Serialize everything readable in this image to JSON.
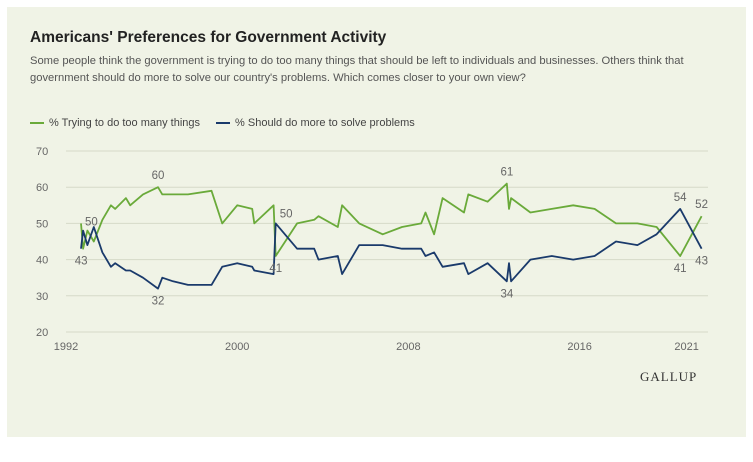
{
  "brand": "GALLUP",
  "colors": {
    "series_1": "#6aaa3a",
    "series_2": "#1a3a6b",
    "background": "#f0f3e6",
    "grid": "#d6dac8"
  },
  "chart_data": {
    "type": "line",
    "title": "Americans' Preferences for Government Activity",
    "subtitle": "Some people think the government is trying to do too many things that should be left to individuals and businesses. Others think that government should do more to solve our country's problems. Which comes closer to your own view?",
    "xlabel": "",
    "ylabel": "",
    "xlim": [
      1992,
      2022
    ],
    "ylim": [
      20,
      70
    ],
    "y_ticks": [
      20,
      30,
      40,
      50,
      60,
      70
    ],
    "x_ticks": [
      "1992",
      "2000",
      "2008",
      "2016",
      "2021"
    ],
    "x_tick_values": [
      1992,
      2000,
      2008,
      2016,
      2021
    ],
    "grid": true,
    "legend_position": "top-left",
    "series": [
      {
        "name": "% Trying to do too many things",
        "x": [
          1992.7,
          1992.8,
          1993.0,
          1993.3,
          1993.7,
          1994.1,
          1994.3,
          1994.8,
          1995.0,
          1995.6,
          1996.3,
          1996.5,
          1997.0,
          1997.7,
          1998.8,
          1999.3,
          2000.0,
          2000.7,
          2000.8,
          2001.7,
          2001.8,
          2002.8,
          2003.6,
          2003.8,
          2004.7,
          2004.9,
          2005.7,
          2006.8,
          2007.7,
          2008.6,
          2008.8,
          2009.2,
          2009.6,
          2010.6,
          2010.8,
          2011.7,
          2012.6,
          2012.7,
          2012.8,
          2013.7,
          2014.7,
          2015.7,
          2016.7,
          2017.7,
          2018.7,
          2019.6,
          2020.7,
          2021.7
        ],
        "values": [
          50,
          43,
          48,
          45,
          51,
          55,
          54,
          57,
          55,
          58,
          60,
          58,
          58,
          58,
          59,
          50,
          55,
          54,
          50,
          55,
          41,
          50,
          51,
          52,
          49,
          55,
          50,
          47,
          49,
          50,
          53,
          47,
          57,
          53,
          58,
          56,
          61,
          54,
          57,
          53,
          54,
          55,
          54,
          50,
          50,
          49,
          41,
          52
        ]
      },
      {
        "name": "% Should do more to solve problems",
        "x": [
          1992.7,
          1992.8,
          1993.0,
          1993.3,
          1993.7,
          1994.1,
          1994.3,
          1994.8,
          1995.0,
          1995.6,
          1996.3,
          1996.5,
          1997.0,
          1997.7,
          1998.8,
          1999.3,
          2000.0,
          2000.7,
          2000.8,
          2001.7,
          2001.8,
          2002.8,
          2003.6,
          2003.8,
          2004.7,
          2004.9,
          2005.7,
          2006.8,
          2007.7,
          2008.6,
          2008.8,
          2009.2,
          2009.6,
          2010.6,
          2010.8,
          2011.7,
          2012.6,
          2012.7,
          2012.8,
          2013.7,
          2014.7,
          2015.7,
          2016.7,
          2017.7,
          2018.7,
          2019.6,
          2020.7,
          2021.7
        ],
        "values": [
          43,
          48,
          44,
          49,
          42,
          38,
          39,
          37,
          37,
          35,
          32,
          35,
          34,
          33,
          33,
          38,
          39,
          38,
          37,
          36,
          50,
          43,
          43,
          40,
          41,
          36,
          44,
          44,
          43,
          43,
          41,
          42,
          38,
          39,
          36,
          39,
          34,
          39,
          34,
          40,
          41,
          40,
          41,
          45,
          44,
          47,
          54,
          43
        ]
      }
    ],
    "annotations": [
      {
        "series": 0,
        "x": 1992.7,
        "value": 50,
        "label": "50",
        "pos": "right"
      },
      {
        "series": 1,
        "x": 1992.8,
        "value": 43,
        "label": "43",
        "pos": "below-left"
      },
      {
        "series": 0,
        "x": 1996.3,
        "value": 60,
        "label": "60",
        "pos": "above"
      },
      {
        "series": 1,
        "x": 1996.3,
        "value": 32,
        "label": "32",
        "pos": "below"
      },
      {
        "series": 0,
        "x": 2001.8,
        "value": 41,
        "label": "41",
        "pos": "below"
      },
      {
        "series": 1,
        "x": 2001.8,
        "value": 50,
        "label": "50",
        "pos": "above-right"
      },
      {
        "series": 0,
        "x": 2012.6,
        "value": 61,
        "label": "61",
        "pos": "above"
      },
      {
        "series": 1,
        "x": 2012.6,
        "value": 34,
        "label": "34",
        "pos": "below"
      },
      {
        "series": 1,
        "x": 2020.7,
        "value": 54,
        "label": "54",
        "pos": "above"
      },
      {
        "series": 0,
        "x": 2020.7,
        "value": 41,
        "label": "41",
        "pos": "below"
      },
      {
        "series": 0,
        "x": 2021.7,
        "value": 52,
        "label": "52",
        "pos": "above"
      },
      {
        "series": 1,
        "x": 2021.7,
        "value": 43,
        "label": "43",
        "pos": "below"
      }
    ]
  }
}
